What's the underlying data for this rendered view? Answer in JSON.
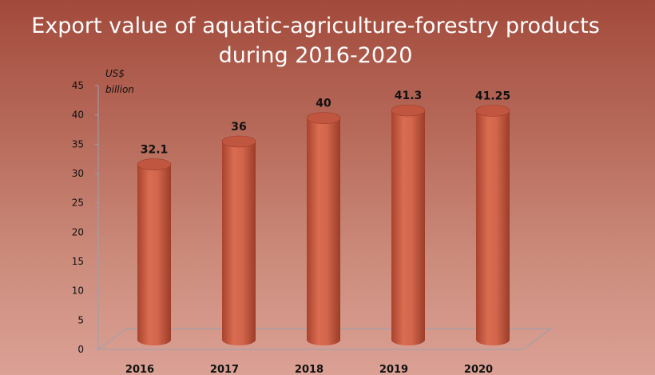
{
  "chart_data": {
    "type": "bar",
    "title": "Export value of aquatic-agriculture-forestry products during 2016-2020",
    "title_lines": [
      "Export value of aquatic-agriculture-forestry  products",
      "during 2016-2020"
    ],
    "ylabel": "US$ billion",
    "ylabel_lines": [
      "US$",
      "billion"
    ],
    "categories": [
      "2016",
      "2017",
      "2018",
      "2019",
      "2020"
    ],
    "values": [
      32.1,
      36,
      40,
      41.3,
      41.25
    ],
    "data_labels": [
      "32.1",
      "36",
      "40",
      "41.3",
      "41.25"
    ],
    "ylim": [
      0,
      45
    ],
    "yticks": [
      0,
      5,
      10,
      15,
      20,
      25,
      30,
      35,
      40,
      45
    ],
    "grid": false,
    "legend": "none",
    "bar_style": "3d-cylinder",
    "colors": {
      "bar": "#d2664c",
      "bar_dark": "#a8432e",
      "bar_top": "#c0563f",
      "text": "#111111",
      "title": "#ffffff",
      "axis": "#9aa0b0"
    }
  }
}
